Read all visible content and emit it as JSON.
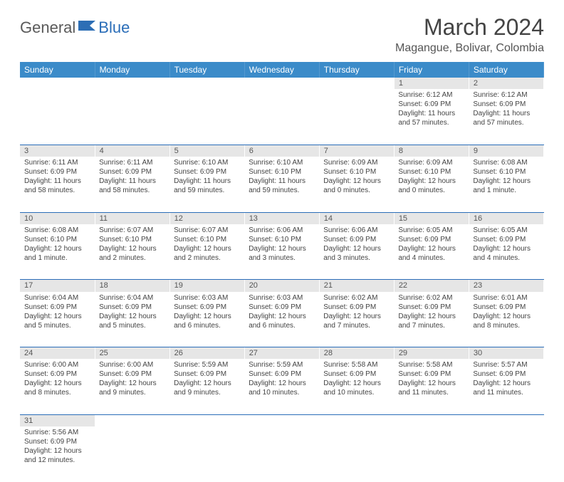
{
  "logo": {
    "text1": "General",
    "text2": "Blue",
    "flag_color": "#2d6eb5"
  },
  "title": "March 2024",
  "location": "Magangue, Bolivar, Colombia",
  "colors": {
    "header_bg": "#3b8bc9",
    "header_text": "#ffffff",
    "daynum_bg": "#e6e6e6",
    "row_divider": "#2a6db8",
    "body_text": "#444444"
  },
  "weekdays": [
    "Sunday",
    "Monday",
    "Tuesday",
    "Wednesday",
    "Thursday",
    "Friday",
    "Saturday"
  ],
  "weeks": [
    [
      null,
      null,
      null,
      null,
      null,
      {
        "n": "1",
        "sr": "Sunrise: 6:12 AM",
        "ss": "Sunset: 6:09 PM",
        "dl": "Daylight: 11 hours and 57 minutes."
      },
      {
        "n": "2",
        "sr": "Sunrise: 6:12 AM",
        "ss": "Sunset: 6:09 PM",
        "dl": "Daylight: 11 hours and 57 minutes."
      }
    ],
    [
      {
        "n": "3",
        "sr": "Sunrise: 6:11 AM",
        "ss": "Sunset: 6:09 PM",
        "dl": "Daylight: 11 hours and 58 minutes."
      },
      {
        "n": "4",
        "sr": "Sunrise: 6:11 AM",
        "ss": "Sunset: 6:09 PM",
        "dl": "Daylight: 11 hours and 58 minutes."
      },
      {
        "n": "5",
        "sr": "Sunrise: 6:10 AM",
        "ss": "Sunset: 6:09 PM",
        "dl": "Daylight: 11 hours and 59 minutes."
      },
      {
        "n": "6",
        "sr": "Sunrise: 6:10 AM",
        "ss": "Sunset: 6:10 PM",
        "dl": "Daylight: 11 hours and 59 minutes."
      },
      {
        "n": "7",
        "sr": "Sunrise: 6:09 AM",
        "ss": "Sunset: 6:10 PM",
        "dl": "Daylight: 12 hours and 0 minutes."
      },
      {
        "n": "8",
        "sr": "Sunrise: 6:09 AM",
        "ss": "Sunset: 6:10 PM",
        "dl": "Daylight: 12 hours and 0 minutes."
      },
      {
        "n": "9",
        "sr": "Sunrise: 6:08 AM",
        "ss": "Sunset: 6:10 PM",
        "dl": "Daylight: 12 hours and 1 minute."
      }
    ],
    [
      {
        "n": "10",
        "sr": "Sunrise: 6:08 AM",
        "ss": "Sunset: 6:10 PM",
        "dl": "Daylight: 12 hours and 1 minute."
      },
      {
        "n": "11",
        "sr": "Sunrise: 6:07 AM",
        "ss": "Sunset: 6:10 PM",
        "dl": "Daylight: 12 hours and 2 minutes."
      },
      {
        "n": "12",
        "sr": "Sunrise: 6:07 AM",
        "ss": "Sunset: 6:10 PM",
        "dl": "Daylight: 12 hours and 2 minutes."
      },
      {
        "n": "13",
        "sr": "Sunrise: 6:06 AM",
        "ss": "Sunset: 6:10 PM",
        "dl": "Daylight: 12 hours and 3 minutes."
      },
      {
        "n": "14",
        "sr": "Sunrise: 6:06 AM",
        "ss": "Sunset: 6:09 PM",
        "dl": "Daylight: 12 hours and 3 minutes."
      },
      {
        "n": "15",
        "sr": "Sunrise: 6:05 AM",
        "ss": "Sunset: 6:09 PM",
        "dl": "Daylight: 12 hours and 4 minutes."
      },
      {
        "n": "16",
        "sr": "Sunrise: 6:05 AM",
        "ss": "Sunset: 6:09 PM",
        "dl": "Daylight: 12 hours and 4 minutes."
      }
    ],
    [
      {
        "n": "17",
        "sr": "Sunrise: 6:04 AM",
        "ss": "Sunset: 6:09 PM",
        "dl": "Daylight: 12 hours and 5 minutes."
      },
      {
        "n": "18",
        "sr": "Sunrise: 6:04 AM",
        "ss": "Sunset: 6:09 PM",
        "dl": "Daylight: 12 hours and 5 minutes."
      },
      {
        "n": "19",
        "sr": "Sunrise: 6:03 AM",
        "ss": "Sunset: 6:09 PM",
        "dl": "Daylight: 12 hours and 6 minutes."
      },
      {
        "n": "20",
        "sr": "Sunrise: 6:03 AM",
        "ss": "Sunset: 6:09 PM",
        "dl": "Daylight: 12 hours and 6 minutes."
      },
      {
        "n": "21",
        "sr": "Sunrise: 6:02 AM",
        "ss": "Sunset: 6:09 PM",
        "dl": "Daylight: 12 hours and 7 minutes."
      },
      {
        "n": "22",
        "sr": "Sunrise: 6:02 AM",
        "ss": "Sunset: 6:09 PM",
        "dl": "Daylight: 12 hours and 7 minutes."
      },
      {
        "n": "23",
        "sr": "Sunrise: 6:01 AM",
        "ss": "Sunset: 6:09 PM",
        "dl": "Daylight: 12 hours and 8 minutes."
      }
    ],
    [
      {
        "n": "24",
        "sr": "Sunrise: 6:00 AM",
        "ss": "Sunset: 6:09 PM",
        "dl": "Daylight: 12 hours and 8 minutes."
      },
      {
        "n": "25",
        "sr": "Sunrise: 6:00 AM",
        "ss": "Sunset: 6:09 PM",
        "dl": "Daylight: 12 hours and 9 minutes."
      },
      {
        "n": "26",
        "sr": "Sunrise: 5:59 AM",
        "ss": "Sunset: 6:09 PM",
        "dl": "Daylight: 12 hours and 9 minutes."
      },
      {
        "n": "27",
        "sr": "Sunrise: 5:59 AM",
        "ss": "Sunset: 6:09 PM",
        "dl": "Daylight: 12 hours and 10 minutes."
      },
      {
        "n": "28",
        "sr": "Sunrise: 5:58 AM",
        "ss": "Sunset: 6:09 PM",
        "dl": "Daylight: 12 hours and 10 minutes."
      },
      {
        "n": "29",
        "sr": "Sunrise: 5:58 AM",
        "ss": "Sunset: 6:09 PM",
        "dl": "Daylight: 12 hours and 11 minutes."
      },
      {
        "n": "30",
        "sr": "Sunrise: 5:57 AM",
        "ss": "Sunset: 6:09 PM",
        "dl": "Daylight: 12 hours and 11 minutes."
      }
    ],
    [
      {
        "n": "31",
        "sr": "Sunrise: 5:56 AM",
        "ss": "Sunset: 6:09 PM",
        "dl": "Daylight: 12 hours and 12 minutes."
      },
      null,
      null,
      null,
      null,
      null,
      null
    ]
  ]
}
